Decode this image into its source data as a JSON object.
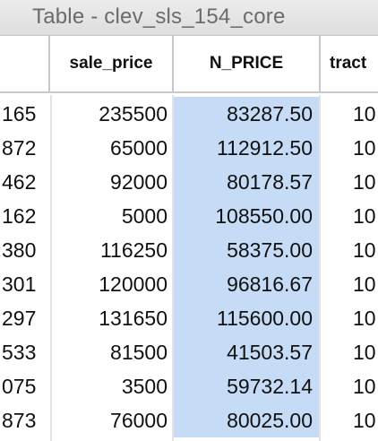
{
  "window": {
    "title": "Table - clev_sls_154_core"
  },
  "columns": [
    {
      "key": "id",
      "label": ""
    },
    {
      "key": "sale_price",
      "label": "sale_price"
    },
    {
      "key": "n_price",
      "label": "N_PRICE"
    },
    {
      "key": "tract",
      "label": "tract"
    }
  ],
  "selected_column": "N_PRICE",
  "rows": [
    {
      "id": "165",
      "sale_price": "235500",
      "n_price": "83287.50",
      "tract": "10"
    },
    {
      "id": "872",
      "sale_price": "65000",
      "n_price": "112912.50",
      "tract": "10"
    },
    {
      "id": "462",
      "sale_price": "92000",
      "n_price": "80178.57",
      "tract": "10"
    },
    {
      "id": "162",
      "sale_price": "5000",
      "n_price": "108550.00",
      "tract": "10"
    },
    {
      "id": "380",
      "sale_price": "116250",
      "n_price": "58375.00",
      "tract": "10"
    },
    {
      "id": "301",
      "sale_price": "120000",
      "n_price": "96816.67",
      "tract": "10"
    },
    {
      "id": "297",
      "sale_price": "131650",
      "n_price": "115600.00",
      "tract": "10"
    },
    {
      "id": "533",
      "sale_price": "81500",
      "n_price": "41503.57",
      "tract": "10"
    },
    {
      "id": "075",
      "sale_price": "3500",
      "n_price": "59732.14",
      "tract": "10"
    },
    {
      "id": "873",
      "sale_price": "76000",
      "n_price": "80025.00",
      "tract": "10"
    }
  ],
  "colors": {
    "selection": "#c5dbf6",
    "grid_line": "#c9c9c9",
    "title_text": "#6b6b6b"
  }
}
